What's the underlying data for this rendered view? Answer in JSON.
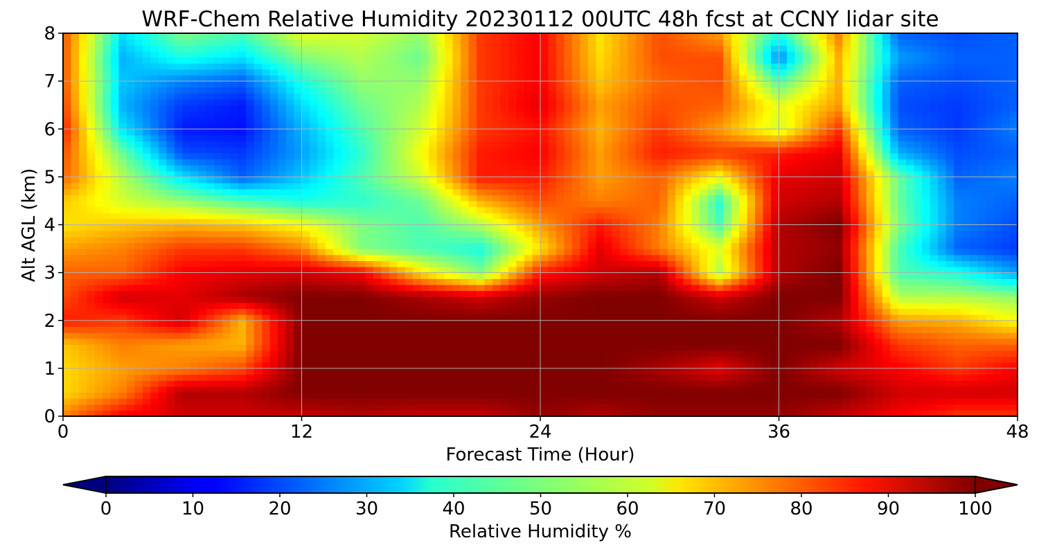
{
  "chart_data": {
    "type": "heatmap",
    "title": "WRF-Chem Relative Humidity 20230112 00UTC 48h fcst at CCNY lidar site",
    "xlabel": "Forecast Time (Hour)",
    "ylabel": "Alt AGL (km)",
    "xlim": [
      0,
      48
    ],
    "ylim": [
      0,
      8
    ],
    "x_ticks": [
      "0",
      "12",
      "24",
      "36",
      "48"
    ],
    "y_ticks": [
      "0",
      "1",
      "2",
      "3",
      "4",
      "5",
      "6",
      "7",
      "8"
    ],
    "grid": true,
    "x": [
      0,
      3,
      6,
      9,
      12,
      15,
      18,
      21,
      24,
      27,
      30,
      33,
      36,
      39,
      42,
      45,
      48
    ],
    "y": [
      0,
      0.5,
      1,
      1.5,
      2,
      2.5,
      3,
      3.5,
      4,
      4.5,
      5,
      5.5,
      6,
      6.5,
      7,
      7.5,
      8
    ],
    "values": [
      [
        75,
        88,
        92,
        92,
        93,
        95,
        93,
        93,
        98,
        95,
        98,
        98,
        98,
        93,
        88,
        82,
        82
      ],
      [
        66,
        75,
        95,
        95,
        100,
        100,
        100,
        100,
        100,
        100,
        100,
        100,
        100,
        100,
        92,
        92,
        92
      ],
      [
        66,
        72,
        75,
        80,
        100,
        100,
        100,
        100,
        100,
        100,
        96,
        90,
        100,
        92,
        88,
        82,
        88
      ],
      [
        68,
        75,
        72,
        70,
        100,
        100,
        100,
        100,
        100,
        100,
        100,
        100,
        100,
        100,
        82,
        78,
        78
      ],
      [
        85,
        82,
        92,
        70,
        100,
        100,
        100,
        100,
        100,
        100,
        100,
        100,
        100,
        95,
        72,
        70,
        62
      ],
      [
        80,
        92,
        90,
        96,
        100,
        100,
        96,
        92,
        98,
        100,
        100,
        92,
        100,
        100,
        55,
        55,
        52
      ],
      [
        78,
        78,
        88,
        90,
        92,
        88,
        65,
        50,
        85,
        92,
        95,
        55,
        95,
        100,
        45,
        40,
        28
      ],
      [
        72,
        75,
        82,
        82,
        75,
        50,
        45,
        40,
        65,
        90,
        75,
        60,
        95,
        98,
        45,
        22,
        18
      ],
      [
        65,
        68,
        70,
        68,
        62,
        50,
        45,
        55,
        72,
        85,
        75,
        45,
        95,
        100,
        50,
        25,
        20
      ],
      [
        68,
        58,
        52,
        45,
        40,
        42,
        48,
        70,
        80,
        75,
        78,
        42,
        92,
        95,
        48,
        25,
        22
      ],
      [
        78,
        55,
        35,
        22,
        32,
        45,
        58,
        85,
        85,
        72,
        78,
        62,
        90,
        92,
        48,
        22,
        25
      ],
      [
        80,
        48,
        20,
        18,
        28,
        42,
        62,
        85,
        88,
        72,
        85,
        82,
        85,
        90,
        30,
        20,
        22
      ],
      [
        85,
        35,
        15,
        14,
        30,
        45,
        58,
        82,
        86,
        70,
        82,
        72,
        58,
        82,
        22,
        18,
        25
      ],
      [
        82,
        30,
        18,
        15,
        34,
        48,
        55,
        82,
        90,
        72,
        80,
        78,
        60,
        72,
        20,
        18,
        22
      ],
      [
        80,
        32,
        25,
        22,
        40,
        52,
        52,
        82,
        88,
        68,
        78,
        80,
        45,
        70,
        22,
        20,
        22
      ],
      [
        80,
        30,
        40,
        35,
        50,
        55,
        48,
        82,
        88,
        66,
        80,
        80,
        25,
        70,
        28,
        22,
        22
      ],
      [
        80,
        35,
        50,
        45,
        60,
        58,
        52,
        82,
        88,
        65,
        80,
        72,
        40,
        75,
        22,
        20,
        22
      ]
    ],
    "colorbar": {
      "label": "Relative Humidity %",
      "min": 0,
      "max": 100,
      "ticks": [
        "0",
        "10",
        "20",
        "30",
        "40",
        "50",
        "60",
        "70",
        "80",
        "90",
        "100"
      ],
      "colormap": "jet",
      "extend": "both"
    }
  }
}
